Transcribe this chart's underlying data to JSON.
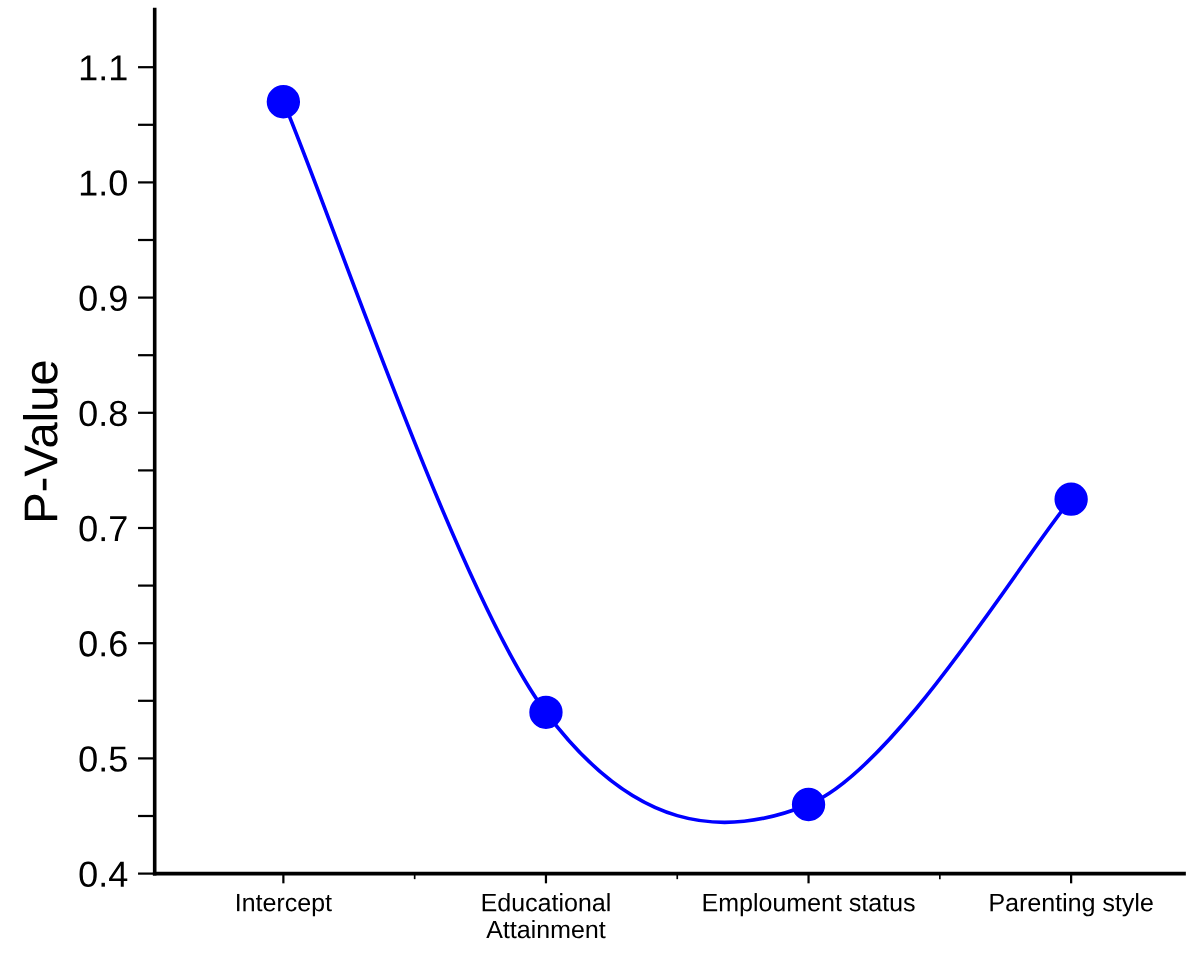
{
  "chart_data": {
    "type": "line",
    "ylabel": "P-Value",
    "categories": [
      "Intercept",
      "Educational\nAttainment",
      "Emploument status",
      "Parenting style"
    ],
    "series": [
      {
        "color": "#0000ff",
        "values": [
          1.07,
          0.54,
          0.46,
          0.725
        ]
      }
    ],
    "ylim": [
      0.4,
      1.15
    ],
    "yticks": [
      0.4,
      {
        "value": 0.45,
        "label": null
      },
      0.5,
      {
        "value": 0.55,
        "label": null
      },
      0.6,
      {
        "value": 0.65,
        "label": null
      },
      0.7,
      {
        "value": 0.75,
        "label": null
      },
      0.8,
      {
        "value": 0.85,
        "label": null
      },
      0.9,
      {
        "value": 0.95,
        "label": null
      },
      {
        "value": 1.0,
        "label": "1.0"
      },
      {
        "value": 1.05,
        "label": null
      },
      1.1
    ],
    "marker": "circle",
    "line_style": "solid",
    "grid": false
  }
}
